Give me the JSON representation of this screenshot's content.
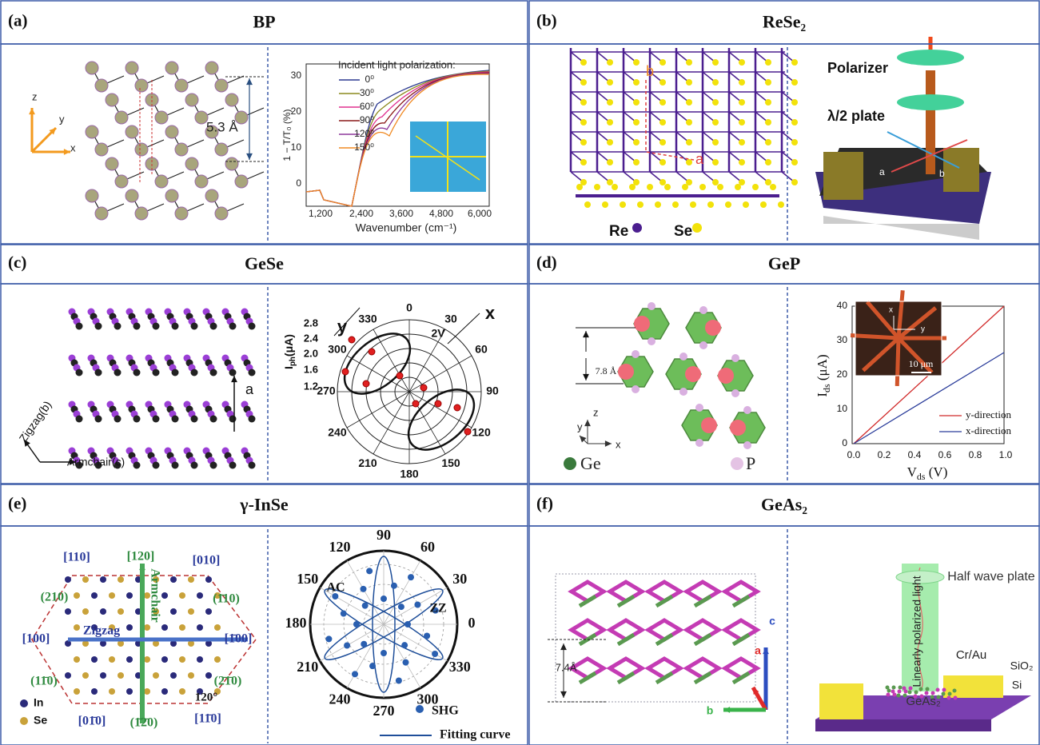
{
  "panels": [
    {
      "label": "(a)",
      "title": "BP",
      "texts": [
        "z",
        "y",
        "x",
        "5.3 Å",
        "Incident light polarization:",
        "0⁰",
        "30⁰",
        "60⁰",
        "90⁰",
        "120⁰",
        "150⁰",
        "1 − T/T₀ (%)",
        "Wavenumber (cm⁻¹)",
        "1,200",
        "2,400",
        "3,600",
        "4,800",
        "6,000",
        "0",
        "10",
        "20",
        "30"
      ]
    },
    {
      "label": "(b)",
      "title": "ReSe₂",
      "texts": [
        "b",
        "a",
        "Re",
        "Se",
        "Polarizer",
        "λ/2 plate",
        "a",
        "b"
      ]
    },
    {
      "label": "(c)",
      "title": "GeSe",
      "texts": [
        "y",
        "x",
        {
          "parts": [
            "I",
            "ph",
            "(μA)"
          ]
        },
        "2.8",
        "2.4",
        "2.0",
        "1.6",
        "1.2",
        "0",
        "30",
        "60",
        "90",
        "120",
        "150",
        "180",
        "210",
        "240",
        "270",
        "300",
        "330",
        "2V",
        "a",
        "Zigzag(b)",
        "Armchair(c)"
      ]
    },
    {
      "label": "(d)",
      "title": "GeP",
      "texts": [
        "7.8 Å",
        "z",
        "y",
        "x",
        "Ge",
        "P",
        {
          "parts": [
            "I",
            "ds",
            " (μA)"
          ]
        },
        {
          "parts": [
            "V",
            "ds",
            " (V)"
          ]
        },
        "0",
        "10",
        "20",
        "30",
        "40",
        "0.0",
        "0.2",
        "0.4",
        "0.6",
        "0.8",
        "1.0",
        "y-direction",
        "x-direction",
        "x",
        "y",
        "10 μm"
      ]
    },
    {
      "label": "(e)",
      "title": "γ-InSe",
      "texts": [
        "[110]",
        "[120]",
        "[010]",
        "(210)",
        "(1̄10)",
        "[100]",
        "[1̄00]",
        "(11̄0)",
        "(2̄1̄0)",
        "[01̄0]",
        "(1̄2̄0)",
        "[11̄0]",
        "Armchair",
        "Zigzag",
        "120°",
        "In",
        "Se",
        "90",
        "60",
        "30",
        "0",
        "330",
        "300",
        "270",
        "240",
        "210",
        "180",
        "150",
        "120",
        "AC",
        "ZZ",
        "SHG",
        "Fitting curve"
      ]
    },
    {
      "label": "(f)",
      "title": "GeAs₂",
      "texts": [
        "7.4Å",
        "c",
        "a",
        "b",
        "Linearly polarized light",
        "Half wave plate",
        "Cr/Au",
        "SiO₂",
        "Si",
        "GeAs₂"
      ]
    }
  ]
}
